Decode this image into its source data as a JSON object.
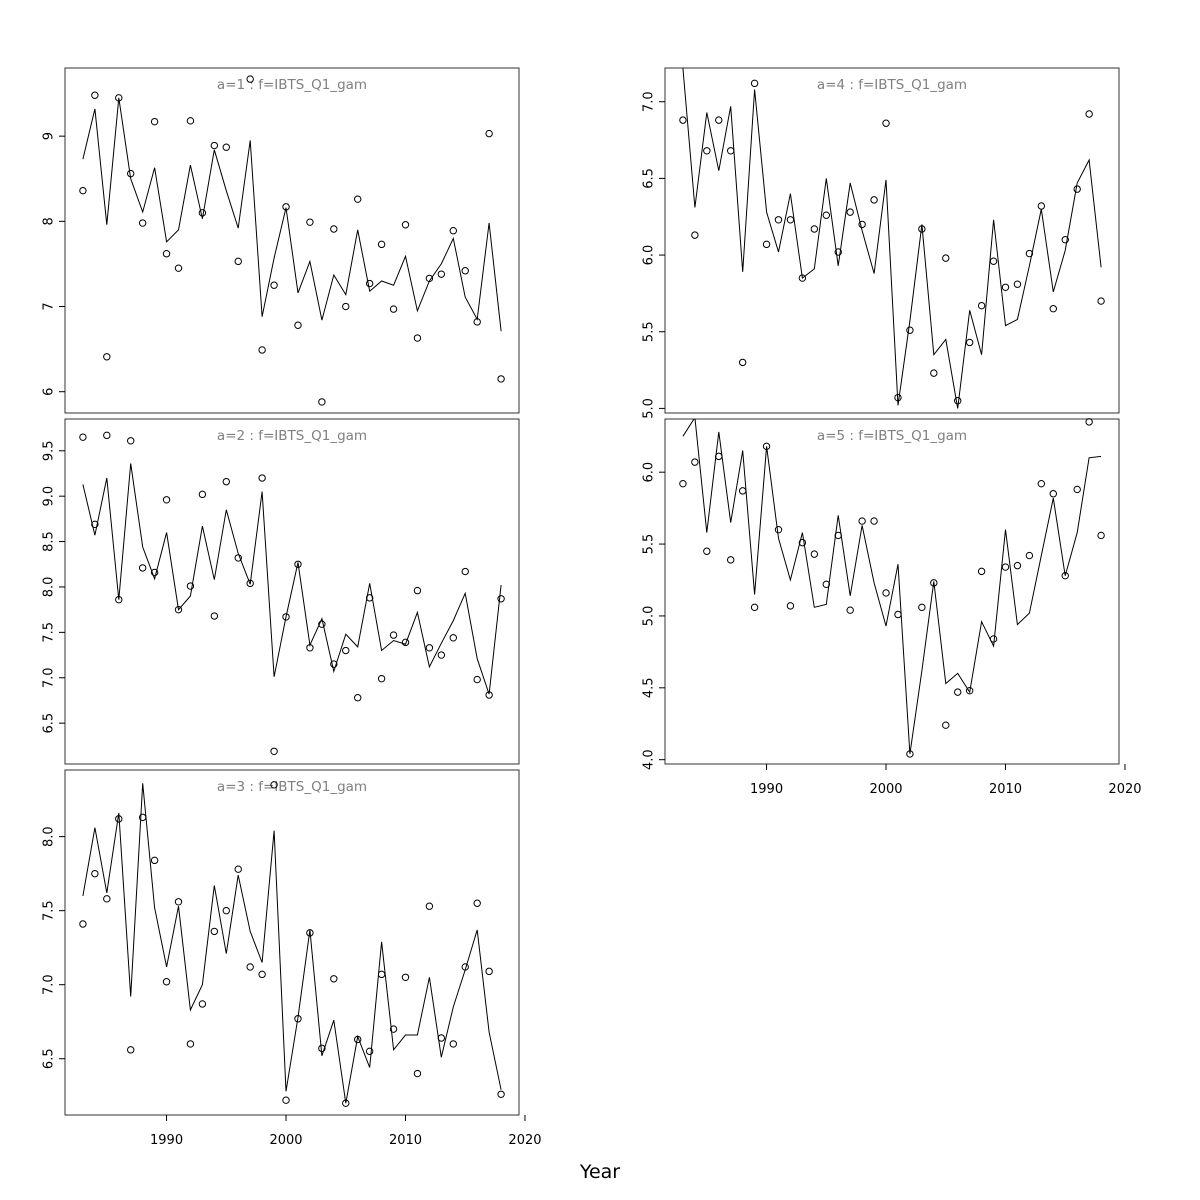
{
  "xlabel": "Year",
  "chart_data": [
    {
      "type": "scatter",
      "panel": "a=1",
      "title": "a=1  :  f=IBTS_Q1_gam",
      "ylim": [
        5.75,
        9.8
      ],
      "yticks": [
        6,
        7,
        8,
        9
      ],
      "xlim": [
        1981.5,
        2019.5
      ],
      "x": [
        1983,
        1984,
        1985,
        1986,
        1987,
        1988,
        1989,
        1990,
        1991,
        1992,
        1993,
        1994,
        1995,
        1996,
        1997,
        1998,
        1999,
        2000,
        2001,
        2002,
        2003,
        2004,
        2005,
        2006,
        2007,
        2008,
        2009,
        2010,
        2011,
        2012,
        2013,
        2014,
        2015,
        2016,
        2017,
        2018
      ],
      "points": [
        8.36,
        9.48,
        6.41,
        9.45,
        8.56,
        7.98,
        9.17,
        7.62,
        7.45,
        9.18,
        8.1,
        8.89,
        8.87,
        7.53,
        9.67,
        6.49,
        7.25,
        8.17,
        6.78,
        7.99,
        5.88,
        7.91,
        7.0,
        8.26,
        7.27,
        7.73,
        6.97,
        7.96,
        6.63,
        7.33,
        7.38,
        7.89,
        7.42,
        6.82,
        9.03,
        6.15
      ],
      "line": [
        8.73,
        9.32,
        7.96,
        9.45,
        8.5,
        8.11,
        8.63,
        7.76,
        7.9,
        8.66,
        8.03,
        8.84,
        8.36,
        7.92,
        8.95,
        6.88,
        7.57,
        8.16,
        7.16,
        7.53,
        6.84,
        7.37,
        7.14,
        7.9,
        7.18,
        7.3,
        7.25,
        7.59,
        6.95,
        7.3,
        7.5,
        7.8,
        7.11,
        6.85,
        7.98,
        6.71
      ]
    },
    {
      "type": "scatter",
      "panel": "a=2",
      "title": "a=2  :  f=IBTS_Q1_gam",
      "ylim": [
        6.05,
        9.85
      ],
      "yticks": [
        6.5,
        7.0,
        7.5,
        8.0,
        8.5,
        9.0,
        9.5
      ],
      "xlim": [
        1981.5,
        2019.5
      ],
      "x": [
        1983,
        1984,
        1985,
        1986,
        1987,
        1988,
        1989,
        1990,
        1991,
        1992,
        1993,
        1994,
        1995,
        1996,
        1997,
        1998,
        1999,
        2000,
        2001,
        2002,
        2003,
        2004,
        2005,
        2006,
        2007,
        2008,
        2009,
        2010,
        2011,
        2012,
        2013,
        2014,
        2015,
        2016,
        2017,
        2018
      ],
      "points": [
        9.65,
        8.69,
        9.67,
        7.86,
        9.61,
        8.21,
        8.16,
        8.96,
        7.75,
        8.01,
        9.02,
        7.68,
        9.16,
        8.32,
        8.04,
        9.2,
        6.19,
        7.67,
        8.25,
        7.33,
        7.59,
        7.15,
        7.3,
        6.78,
        7.88,
        6.99,
        7.47,
        7.39,
        7.96,
        7.33,
        7.25,
        7.44,
        8.17,
        6.98,
        6.81,
        7.87
      ],
      "line": [
        9.13,
        8.57,
        9.2,
        7.86,
        9.36,
        8.44,
        8.09,
        8.6,
        7.75,
        7.9,
        8.67,
        8.08,
        8.85,
        8.37,
        8.03,
        9.05,
        7.01,
        7.67,
        8.27,
        7.36,
        7.65,
        7.07,
        7.48,
        7.34,
        8.04,
        7.3,
        7.41,
        7.37,
        7.72,
        7.12,
        7.38,
        7.63,
        7.93,
        7.21,
        6.82,
        8.02
      ]
    },
    {
      "type": "scatter",
      "panel": "a=3",
      "title": "a=3  :  f=IBTS_Q1_gam",
      "ylim": [
        6.12,
        8.45
      ],
      "yticks": [
        6.5,
        7.0,
        7.5,
        8.0
      ],
      "xlim": [
        1981.5,
        2019.5
      ],
      "xticks": [
        1990,
        2000,
        2010,
        2020
      ],
      "x": [
        1983,
        1984,
        1985,
        1986,
        1987,
        1988,
        1989,
        1990,
        1991,
        1992,
        1993,
        1994,
        1995,
        1996,
        1997,
        1998,
        1999,
        2000,
        2001,
        2002,
        2003,
        2004,
        2005,
        2006,
        2007,
        2008,
        2009,
        2010,
        2011,
        2012,
        2013,
        2014,
        2015,
        2016,
        2017,
        2018
      ],
      "points": [
        7.41,
        7.75,
        7.58,
        8.12,
        6.56,
        8.13,
        7.84,
        7.02,
        7.56,
        6.6,
        6.87,
        7.36,
        7.5,
        7.78,
        7.12,
        7.07,
        8.35,
        6.22,
        6.77,
        7.35,
        6.57,
        7.04,
        6.2,
        6.63,
        6.55,
        7.07,
        6.7,
        7.05,
        6.4,
        7.53,
        6.64,
        6.6,
        7.12,
        7.55,
        7.09,
        6.26
      ],
      "line": [
        7.6,
        8.06,
        7.62,
        8.16,
        6.92,
        8.36,
        7.52,
        7.12,
        7.53,
        6.83,
        7.0,
        7.67,
        7.21,
        7.74,
        7.36,
        7.15,
        8.04,
        6.28,
        6.78,
        7.37,
        6.52,
        6.76,
        6.2,
        6.65,
        6.44,
        7.29,
        6.56,
        6.66,
        6.66,
        7.05,
        6.51,
        6.85,
        7.1,
        7.37,
        6.68,
        6.29
      ]
    },
    {
      "type": "scatter",
      "panel": "a=4",
      "title": "a=4  :  f=IBTS_Q1_gam",
      "ylim": [
        4.97,
        7.22
      ],
      "yticks": [
        5.0,
        5.5,
        6.0,
        6.5,
        7.0
      ],
      "xlim": [
        1981.5,
        2019.5
      ],
      "x": [
        1983,
        1984,
        1985,
        1986,
        1987,
        1988,
        1989,
        1990,
        1991,
        1992,
        1993,
        1994,
        1995,
        1996,
        1997,
        1998,
        1999,
        2000,
        2001,
        2002,
        2003,
        2004,
        2005,
        2006,
        2007,
        2008,
        2009,
        2010,
        2011,
        2012,
        2013,
        2014,
        2015,
        2016,
        2017,
        2018
      ],
      "points": [
        6.88,
        6.13,
        6.68,
        6.88,
        6.68,
        5.3,
        7.12,
        6.07,
        6.23,
        6.23,
        5.85,
        6.17,
        6.26,
        6.02,
        6.28,
        6.2,
        6.36,
        6.86,
        5.07,
        5.51,
        6.17,
        5.23,
        5.98,
        5.05,
        5.43,
        5.67,
        5.96,
        5.79,
        5.81,
        6.01,
        6.32,
        5.65,
        6.1,
        6.43,
        6.92,
        5.7
      ],
      "line": [
        7.22,
        6.31,
        6.93,
        6.55,
        6.97,
        5.89,
        7.08,
        6.28,
        6.02,
        6.4,
        5.85,
        5.91,
        6.5,
        5.93,
        6.47,
        6.16,
        5.88,
        6.49,
        5.02,
        5.57,
        6.2,
        5.35,
        5.45,
        5.0,
        5.64,
        5.35,
        6.23,
        5.54,
        5.58,
        5.93,
        6.3,
        5.76,
        6.03,
        6.47,
        6.62,
        5.92
      ]
    },
    {
      "type": "scatter",
      "panel": "a=5",
      "title": "a=5  :  f=IBTS_Q1_gam",
      "ylim": [
        3.97,
        6.37
      ],
      "yticks": [
        4.0,
        4.5,
        5.0,
        5.5,
        6.0
      ],
      "xlim": [
        1981.5,
        2019.5
      ],
      "xticks": [
        1990,
        2000,
        2010,
        2020
      ],
      "x": [
        1983,
        1984,
        1985,
        1986,
        1987,
        1988,
        1989,
        1990,
        1991,
        1992,
        1993,
        1994,
        1995,
        1996,
        1997,
        1998,
        1999,
        2000,
        2001,
        2002,
        2003,
        2004,
        2005,
        2006,
        2007,
        2008,
        2009,
        2010,
        2011,
        2012,
        2013,
        2014,
        2015,
        2016,
        2017,
        2018
      ],
      "points": [
        5.92,
        6.07,
        5.45,
        6.11,
        5.39,
        5.87,
        5.06,
        6.18,
        5.6,
        5.07,
        5.51,
        5.43,
        5.22,
        5.56,
        5.04,
        5.66,
        5.66,
        5.16,
        5.01,
        4.04,
        5.06,
        5.23,
        4.24,
        4.47,
        4.48,
        5.31,
        4.84,
        5.34,
        5.35,
        5.42,
        5.92,
        5.85,
        5.28,
        5.88,
        6.35,
        5.56
      ],
      "line": [
        6.25,
        6.38,
        5.58,
        6.28,
        5.65,
        6.15,
        5.15,
        6.18,
        5.54,
        5.25,
        5.58,
        5.06,
        5.08,
        5.7,
        5.14,
        5.63,
        5.23,
        4.93,
        5.36,
        4.04,
        4.62,
        5.24,
        4.53,
        4.6,
        4.47,
        4.96,
        4.79,
        5.6,
        4.94,
        5.02,
        5.42,
        5.82,
        5.28,
        5.58,
        6.1,
        6.11
      ]
    }
  ]
}
